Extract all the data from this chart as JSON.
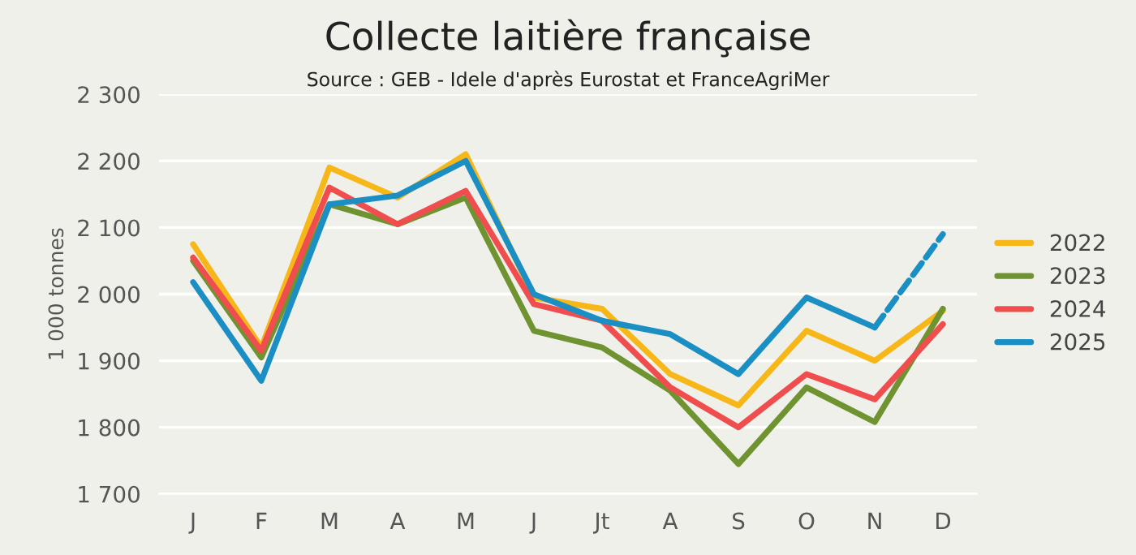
{
  "chart_data": {
    "type": "line",
    "title": "Collecte laitière française",
    "subtitle": "Source : GEB - Idele d'après Eurostat et FranceAgriMer",
    "ylabel": "1 000 tonnes",
    "categories": [
      "J",
      "F",
      "M",
      "A",
      "M",
      "J",
      "Jt",
      "A",
      "S",
      "O",
      "N",
      "D"
    ],
    "ylim": [
      1700,
      2300
    ],
    "yticks": [
      {
        "value": 1700,
        "label": "1 700"
      },
      {
        "value": 1800,
        "label": "1 800"
      },
      {
        "value": 1900,
        "label": "1 900"
      },
      {
        "value": 2000,
        "label": "2 000"
      },
      {
        "value": 2100,
        "label": "2 100"
      },
      {
        "value": 2200,
        "label": "2 200"
      },
      {
        "value": 2300,
        "label": "2 300"
      }
    ],
    "grid": "y",
    "legend": "right",
    "marker": "none",
    "series": [
      {
        "name": "2022",
        "color": "#f7b718",
        "values": [
          2075,
          1920,
          2190,
          2145,
          2210,
          1995,
          1978,
          1880,
          1833,
          1945,
          1900,
          1975
        ]
      },
      {
        "name": "2023",
        "color": "#6e9330",
        "values": [
          2050,
          1905,
          2135,
          2105,
          2145,
          1945,
          1920,
          1855,
          1745,
          1860,
          1808,
          1978
        ]
      },
      {
        "name": "2024",
        "color": "#f04e4e",
        "values": [
          2055,
          1915,
          2160,
          2105,
          2155,
          1985,
          1960,
          1860,
          1800,
          1880,
          1842,
          1955
        ]
      },
      {
        "name": "2025",
        "color": "#1b8fc4",
        "values": [
          2018,
          1870,
          2135,
          2148,
          2200,
          2000,
          1960,
          1940,
          1880,
          1995,
          1950,
          null
        ]
      },
      {
        "color": "#1b8fc4",
        "line_style": "dashed",
        "values": [
          null,
          null,
          null,
          null,
          null,
          null,
          null,
          null,
          null,
          null,
          1950,
          2090
        ]
      }
    ]
  }
}
